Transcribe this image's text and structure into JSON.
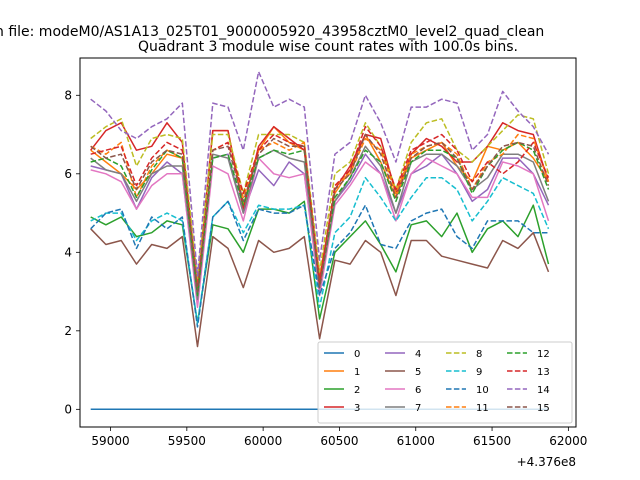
{
  "suptitle": "n file: modeM0/AS1A13_025T01_9000005920_43958cztM0_level2_quad_clean",
  "chart_data": {
    "type": "line",
    "title": "Quadrant 3 module wise count rates with 100.0s bins.",
    "xlabel": "",
    "ylabel": "",
    "x_offset_label": "+4.376e8",
    "xlim": [
      58800,
      62050
    ],
    "ylim": [
      -0.45,
      8.95
    ],
    "xticks": [
      59000,
      59500,
      60000,
      60500,
      61000,
      61500,
      62000
    ],
    "xtick_labels": [
      "59000",
      "59500",
      "60000",
      "60500",
      "61000",
      "61500",
      "62000"
    ],
    "yticks": [
      0,
      2,
      4,
      6,
      8
    ],
    "ytick_labels": [
      "0",
      "2",
      "4",
      "6",
      "8"
    ],
    "grid": false,
    "legend_position": "lower right",
    "x": [
      58870,
      58970,
      59070,
      59170,
      59270,
      59370,
      59470,
      59570,
      59670,
      59770,
      59870,
      59970,
      60070,
      60170,
      60270,
      60370,
      60470,
      60570,
      60670,
      60770,
      60870,
      60970,
      61070,
      61170,
      61270,
      61370,
      61470,
      61570,
      61670,
      61770,
      61870
    ],
    "series": [
      {
        "name": "0",
        "color": "#1f77b4",
        "dash": "solid",
        "values": [
          0,
          0,
          0,
          0,
          0,
          0,
          0,
          0,
          0,
          0,
          0,
          0,
          0,
          0,
          0,
          0,
          0,
          0,
          0,
          0,
          0,
          0,
          0,
          0,
          0,
          0,
          0,
          0,
          0,
          0,
          0
        ]
      },
      {
        "name": "1",
        "color": "#ff7f0e",
        "dash": "solid",
        "values": [
          6.6,
          6.3,
          6.0,
          5.6,
          6.0,
          6.5,
          6.4,
          3.0,
          7.1,
          7.1,
          5.2,
          6.6,
          7.2,
          6.8,
          6.6,
          3.4,
          5.5,
          6.1,
          7.0,
          6.3,
          5.4,
          6.4,
          6.6,
          6.8,
          6.2,
          5.8,
          6.7,
          6.6,
          6.8,
          6.4,
          5.8
        ]
      },
      {
        "name": "2",
        "color": "#2ca02c",
        "dash": "solid",
        "values": [
          4.9,
          4.7,
          4.9,
          4.4,
          4.5,
          4.8,
          4.7,
          2.2,
          4.7,
          4.6,
          4.0,
          5.1,
          5.1,
          5.0,
          5.3,
          2.3,
          4.0,
          4.4,
          4.8,
          4.2,
          3.5,
          4.7,
          4.8,
          4.4,
          5.0,
          4.0,
          4.6,
          4.8,
          4.4,
          5.2,
          3.7
        ]
      },
      {
        "name": "3",
        "color": "#d62728",
        "dash": "solid",
        "values": [
          6.6,
          7.1,
          7.3,
          6.6,
          6.7,
          7.3,
          6.8,
          3.1,
          7.1,
          7.1,
          5.1,
          6.7,
          7.2,
          6.9,
          6.6,
          3.3,
          5.6,
          6.2,
          7.0,
          6.9,
          5.5,
          6.5,
          6.9,
          6.7,
          6.3,
          6.3,
          6.7,
          7.3,
          7.1,
          7.0,
          5.8
        ]
      },
      {
        "name": "4",
        "color": "#9467bd",
        "dash": "solid",
        "values": [
          6.2,
          6.1,
          6.0,
          5.1,
          5.9,
          6.3,
          6.0,
          2.7,
          6.4,
          6.5,
          5.0,
          6.1,
          5.7,
          6.3,
          6.0,
          3.0,
          5.3,
          5.8,
          6.5,
          6.0,
          5.0,
          6.0,
          6.2,
          6.5,
          6.0,
          5.3,
          5.6,
          6.4,
          6.4,
          6.0,
          5.2
        ]
      },
      {
        "name": "5",
        "color": "#8c564b",
        "dash": "solid",
        "values": [
          4.6,
          4.2,
          4.3,
          3.7,
          4.2,
          4.1,
          4.4,
          1.6,
          4.4,
          4.1,
          3.1,
          4.3,
          4.0,
          4.1,
          4.4,
          1.8,
          3.8,
          3.7,
          4.3,
          4.0,
          2.9,
          4.3,
          4.3,
          3.9,
          3.8,
          3.7,
          3.6,
          4.3,
          4.1,
          4.5,
          3.5
        ]
      },
      {
        "name": "6",
        "color": "#e377c2",
        "dash": "solid",
        "values": [
          6.1,
          6.0,
          5.8,
          5.1,
          5.7,
          6.0,
          6.0,
          2.6,
          6.2,
          6.0,
          4.8,
          6.4,
          6.0,
          5.9,
          6.0,
          2.9,
          5.2,
          5.7,
          6.3,
          6.0,
          4.8,
          6.0,
          6.4,
          6.2,
          6.0,
          5.4,
          5.4,
          6.3,
          6.2,
          6.0,
          4.8
        ]
      },
      {
        "name": "7",
        "color": "#7f7f7f",
        "dash": "solid",
        "values": [
          6.4,
          6.1,
          6.0,
          5.3,
          6.0,
          6.2,
          6.2,
          2.8,
          6.5,
          6.4,
          5.0,
          6.4,
          6.6,
          6.4,
          6.3,
          3.1,
          5.3,
          5.9,
          6.7,
          6.2,
          5.0,
          6.3,
          6.5,
          6.5,
          6.2,
          5.6,
          5.9,
          6.5,
          6.5,
          6.3,
          5.3
        ]
      },
      {
        "name": "8",
        "color": "#bcbd22",
        "dash": "dashed",
        "values": [
          6.9,
          7.2,
          7.4,
          6.2,
          6.9,
          7.0,
          6.9,
          3.3,
          7.0,
          7.0,
          5.5,
          7.0,
          7.0,
          7.0,
          6.8,
          3.5,
          6.0,
          6.3,
          7.3,
          6.7,
          5.6,
          6.8,
          7.3,
          7.4,
          6.6,
          6.3,
          6.7,
          7.1,
          7.5,
          7.4,
          6.0
        ]
      },
      {
        "name": "9",
        "color": "#17becf",
        "dash": "dashed",
        "values": [
          4.8,
          5.0,
          5.0,
          4.3,
          4.8,
          5.0,
          4.8,
          2.2,
          4.9,
          5.3,
          4.5,
          5.2,
          5.1,
          5.1,
          5.2,
          2.6,
          4.5,
          4.9,
          5.9,
          5.4,
          4.8,
          5.4,
          5.9,
          5.9,
          5.6,
          4.8,
          5.3,
          5.9,
          5.7,
          5.5,
          4.6
        ]
      },
      {
        "name": "10",
        "color": "#1f77b4",
        "dash": "dashed",
        "values": [
          4.6,
          5.0,
          5.1,
          4.1,
          4.9,
          4.6,
          4.9,
          2.1,
          4.9,
          5.3,
          4.3,
          5.1,
          5.0,
          5.0,
          5.2,
          2.9,
          4.1,
          4.5,
          5.2,
          4.2,
          4.1,
          4.8,
          5.0,
          5.1,
          4.4,
          4.1,
          4.8,
          4.8,
          4.8,
          4.5,
          4.5
        ]
      },
      {
        "name": "11",
        "color": "#ff7f0e",
        "dash": "dashed",
        "values": [
          6.7,
          6.5,
          6.8,
          5.4,
          6.2,
          6.6,
          6.4,
          3.1,
          6.6,
          6.8,
          5.4,
          6.6,
          6.8,
          6.6,
          6.8,
          3.2,
          5.7,
          6.0,
          6.9,
          6.6,
          5.5,
          6.5,
          6.7,
          6.8,
          6.5,
          5.6,
          6.3,
          6.5,
          7.0,
          6.9,
          5.8
        ]
      },
      {
        "name": "12",
        "color": "#2ca02c",
        "dash": "dashed",
        "values": [
          6.3,
          6.4,
          6.2,
          5.4,
          6.1,
          6.6,
          6.4,
          2.9,
          6.4,
          6.5,
          5.2,
          6.4,
          6.6,
          6.5,
          6.6,
          3.1,
          5.4,
          5.9,
          6.6,
          6.3,
          5.3,
          6.3,
          6.6,
          6.6,
          6.4,
          5.5,
          6.2,
          6.6,
          6.8,
          6.6,
          5.6
        ]
      },
      {
        "name": "13",
        "color": "#d62728",
        "dash": "dashed",
        "values": [
          6.5,
          6.6,
          6.7,
          5.7,
          6.4,
          6.8,
          6.6,
          3.0,
          6.6,
          6.8,
          5.5,
          6.6,
          7.0,
          6.8,
          6.7,
          3.2,
          5.7,
          6.1,
          7.2,
          6.7,
          5.6,
          6.6,
          6.8,
          7.0,
          6.6,
          5.8,
          6.3,
          6.0,
          6.3,
          6.8,
          5.9
        ]
      },
      {
        "name": "14",
        "color": "#9467bd",
        "dash": "dashed",
        "values": [
          7.9,
          7.6,
          7.1,
          6.9,
          7.2,
          7.4,
          7.8,
          3.4,
          7.8,
          7.7,
          6.6,
          8.6,
          7.7,
          7.9,
          7.7,
          3.8,
          6.5,
          6.8,
          8.0,
          7.3,
          6.3,
          7.7,
          7.7,
          7.9,
          7.8,
          6.6,
          7.0,
          8.1,
          7.6,
          7.2,
          6.5
        ]
      },
      {
        "name": "15",
        "color": "#8c564b",
        "dash": "dashed",
        "values": [
          6.7,
          6.4,
          6.5,
          5.6,
          6.3,
          6.6,
          6.5,
          3.0,
          6.6,
          6.7,
          5.3,
          6.5,
          6.9,
          6.7,
          6.7,
          3.1,
          5.6,
          6.0,
          7.0,
          6.5,
          5.4,
          6.4,
          6.7,
          6.8,
          6.4,
          5.6,
          6.2,
          6.7,
          6.8,
          6.7,
          5.7
        ]
      }
    ]
  }
}
